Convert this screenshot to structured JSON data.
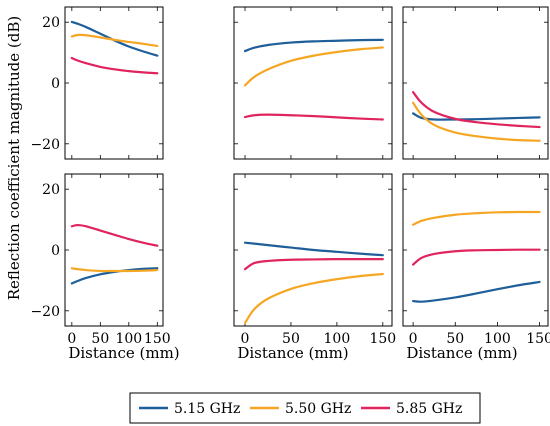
{
  "figure": {
    "ylabel": "Reflection coefficient magnitude (dB)",
    "xlabel": "Distance (mm)"
  },
  "legend": {
    "items": [
      {
        "label": "5.15 GHz",
        "color": "#1f5f99"
      },
      {
        "label": "5.50 GHz",
        "color": "#f5a623"
      },
      {
        "label": "5.85 GHz",
        "color": "#e0245e"
      }
    ]
  },
  "chart_data": [
    {
      "type": "line",
      "panel": "top-left",
      "xlim": [
        -12,
        160
      ],
      "ylim": [
        -25,
        25
      ],
      "xticks": [],
      "yticks": [
        -20,
        0,
        20
      ],
      "series": [
        {
          "name": "5.15 GHz",
          "x": [
            0,
            10,
            25,
            50,
            75,
            100,
            125,
            150
          ],
          "values": [
            20.1,
            19.5,
            18.4,
            16.2,
            14.0,
            12.0,
            10.4,
            9.0
          ]
        },
        {
          "name": "5.50 GHz",
          "x": [
            0,
            10,
            25,
            50,
            75,
            100,
            125,
            150
          ],
          "values": [
            15.3,
            15.8,
            15.7,
            15.0,
            14.2,
            13.5,
            12.9,
            12.2
          ]
        },
        {
          "name": "5.85 GHz",
          "x": [
            0,
            10,
            25,
            50,
            75,
            100,
            125,
            150
          ],
          "values": [
            8.2,
            7.4,
            6.5,
            5.3,
            4.5,
            3.9,
            3.5,
            3.2
          ]
        }
      ]
    },
    {
      "type": "line",
      "panel": "top-middle",
      "xlim": [
        -12,
        160
      ],
      "ylim": [
        -25,
        25
      ],
      "xticks": [],
      "yticks": [],
      "series": [
        {
          "name": "5.15 GHz",
          "x": [
            0,
            10,
            25,
            50,
            75,
            100,
            125,
            150
          ],
          "values": [
            10.5,
            11.6,
            12.5,
            13.3,
            13.7,
            13.9,
            14.1,
            14.2
          ]
        },
        {
          "name": "5.50 GHz",
          "x": [
            0,
            10,
            25,
            50,
            75,
            100,
            125,
            150
          ],
          "values": [
            -0.8,
            2.0,
            4.5,
            7.3,
            9.0,
            10.2,
            11.1,
            11.7
          ]
        },
        {
          "name": "5.85 GHz",
          "x": [
            0,
            10,
            25,
            50,
            75,
            100,
            125,
            150
          ],
          "values": [
            -11.2,
            -10.6,
            -10.4,
            -10.6,
            -10.9,
            -11.3,
            -11.7,
            -12.0
          ]
        }
      ]
    },
    {
      "type": "line",
      "panel": "top-right",
      "xlim": [
        -12,
        160
      ],
      "ylim": [
        -25,
        25
      ],
      "xticks": [],
      "yticks": [],
      "series": [
        {
          "name": "5.15 GHz",
          "x": [
            0,
            10,
            25,
            50,
            75,
            100,
            125,
            150
          ],
          "values": [
            -10.0,
            -11.5,
            -12.0,
            -12.0,
            -11.9,
            -11.7,
            -11.5,
            -11.3
          ]
        },
        {
          "name": "5.50 GHz",
          "x": [
            0,
            10,
            25,
            50,
            75,
            100,
            125,
            150
          ],
          "values": [
            -6.5,
            -10.5,
            -13.8,
            -16.3,
            -17.5,
            -18.3,
            -18.8,
            -19.0
          ]
        },
        {
          "name": "5.85 GHz",
          "x": [
            0,
            10,
            25,
            50,
            75,
            100,
            125,
            150
          ],
          "values": [
            -3.0,
            -6.5,
            -9.5,
            -11.8,
            -12.9,
            -13.6,
            -14.1,
            -14.5
          ]
        }
      ]
    },
    {
      "type": "line",
      "panel": "bottom-left",
      "xlim": [
        -12,
        160
      ],
      "ylim": [
        -25,
        25
      ],
      "xticks": [
        0,
        50,
        100,
        150
      ],
      "yticks": [
        -20,
        0,
        20
      ],
      "series": [
        {
          "name": "5.15 GHz",
          "x": [
            0,
            10,
            25,
            50,
            75,
            100,
            125,
            150
          ],
          "values": [
            -11.0,
            -10.2,
            -9.2,
            -8.0,
            -7.2,
            -6.6,
            -6.2,
            -6.0
          ]
        },
        {
          "name": "5.50 GHz",
          "x": [
            0,
            10,
            25,
            50,
            75,
            100,
            125,
            150
          ],
          "values": [
            -6.0,
            -6.3,
            -6.6,
            -6.9,
            -6.9,
            -6.9,
            -6.8,
            -6.6
          ]
        },
        {
          "name": "5.85 GHz",
          "x": [
            0,
            10,
            25,
            50,
            75,
            100,
            125,
            150
          ],
          "values": [
            7.8,
            8.2,
            7.8,
            6.4,
            5.0,
            3.6,
            2.4,
            1.4
          ]
        }
      ]
    },
    {
      "type": "line",
      "panel": "bottom-middle",
      "xlim": [
        -12,
        160
      ],
      "ylim": [
        -25,
        25
      ],
      "xticks": [
        0,
        50,
        100,
        150
      ],
      "yticks": [],
      "series": [
        {
          "name": "5.15 GHz",
          "x": [
            0,
            10,
            25,
            50,
            75,
            100,
            125,
            150
          ],
          "values": [
            2.4,
            2.1,
            1.6,
            0.8,
            0.0,
            -0.6,
            -1.2,
            -1.7
          ]
        },
        {
          "name": "5.50 GHz",
          "x": [
            0,
            10,
            25,
            50,
            75,
            100,
            125,
            150
          ],
          "values": [
            -24.0,
            -19.5,
            -16.0,
            -12.8,
            -10.9,
            -9.6,
            -8.6,
            -7.9
          ]
        },
        {
          "name": "5.85 GHz",
          "x": [
            0,
            10,
            25,
            50,
            75,
            100,
            125,
            150
          ],
          "values": [
            -6.3,
            -4.3,
            -3.6,
            -3.2,
            -3.1,
            -3.0,
            -3.0,
            -3.0
          ]
        }
      ]
    },
    {
      "type": "line",
      "panel": "bottom-right",
      "xlim": [
        -12,
        160
      ],
      "ylim": [
        -25,
        25
      ],
      "xticks": [
        0,
        50,
        100,
        150
      ],
      "yticks": [],
      "series": [
        {
          "name": "5.15 GHz",
          "x": [
            0,
            10,
            25,
            50,
            75,
            100,
            125,
            150
          ],
          "values": [
            -16.8,
            -17.0,
            -16.6,
            -15.6,
            -14.3,
            -12.9,
            -11.6,
            -10.5
          ]
        },
        {
          "name": "5.50 GHz",
          "x": [
            0,
            10,
            25,
            50,
            75,
            100,
            125,
            150
          ],
          "values": [
            8.3,
            9.6,
            10.6,
            11.6,
            12.1,
            12.4,
            12.5,
            12.5
          ]
        },
        {
          "name": "5.85 GHz",
          "x": [
            0,
            10,
            25,
            50,
            75,
            100,
            125,
            150
          ],
          "values": [
            -4.8,
            -2.6,
            -1.3,
            -0.4,
            -0.1,
            0.0,
            0.1,
            0.1
          ]
        }
      ]
    }
  ]
}
